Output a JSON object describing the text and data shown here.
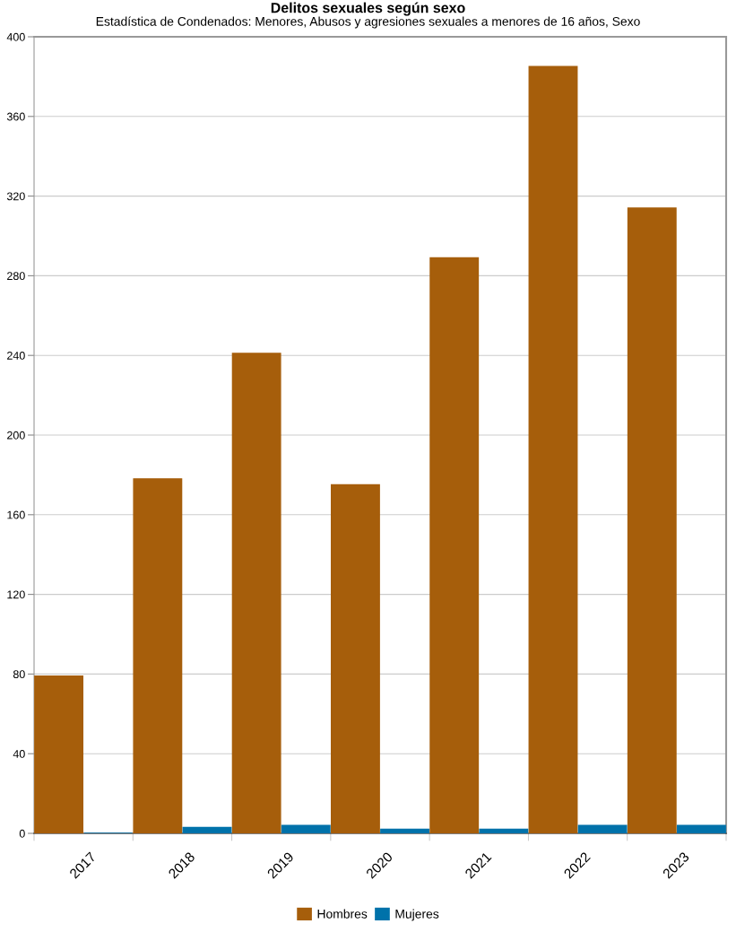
{
  "chart_data": {
    "type": "bar",
    "title": "Delitos sexuales según sexo",
    "subtitle": "Estadística de Condenados: Menores, Abusos y agresiones sexuales a menores de 16 años, Sexo",
    "categories": [
      "2017",
      "2018",
      "2019",
      "2020",
      "2021",
      "2022",
      "2023"
    ],
    "series": [
      {
        "name": "Hombres",
        "color": "#a65e0b",
        "values": [
          79,
          178,
          241,
          175,
          289,
          385,
          314
        ]
      },
      {
        "name": "Mujeres",
        "color": "#0072aa",
        "values": [
          0,
          3,
          4,
          2,
          2,
          4,
          4
        ]
      }
    ],
    "ylim": [
      0,
      400
    ],
    "yticks": [
      0,
      40,
      80,
      120,
      160,
      200,
      240,
      280,
      320,
      360,
      400
    ],
    "grid": "y",
    "legend": "bottom"
  }
}
